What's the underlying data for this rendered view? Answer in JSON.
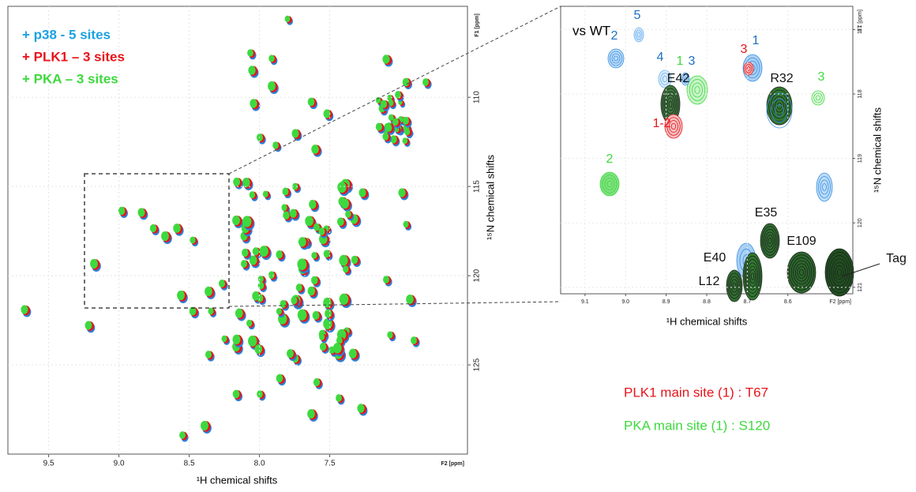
{
  "main_panel": {
    "legend": [
      {
        "text": "+ p38 - 5 sites",
        "color": "#1ba1e2"
      },
      {
        "text": "+ PLK1 – 3 sites",
        "color": "#e8141b"
      },
      {
        "text": "+ PKA – 3 sites",
        "color": "#3ed93e"
      }
    ],
    "xlim": [
      9.79,
      6.52
    ],
    "ylim": [
      104.9,
      130
    ],
    "xticks": [
      9.5,
      {
        "value": 9,
        "label": "9.0"
      },
      8.5,
      {
        "value": 8,
        "label": "8.0"
      },
      7.5
    ],
    "yticks": [
      110,
      115,
      120,
      125
    ],
    "x_unit": "F2 [ppm]",
    "y_unit": "F1 [ppm]",
    "x_label": "¹H chemical shifts",
    "y_label": "¹⁵N chemical shifts"
  },
  "inset_panel": {
    "title": "vs WT",
    "xlim": [
      9.16,
      8.44
    ],
    "ylim": [
      116.64,
      121.1
    ],
    "xticks": [
      9.1,
      {
        "value": 9,
        "label": "9.0"
      },
      8.9,
      8.8,
      8.7,
      8.6
    ],
    "yticks": [
      117,
      118,
      119,
      120,
      121
    ],
    "x_unit": "F2 [ppm]",
    "y_unit": "F1 [ppm]",
    "x_label": "¹H chemical shifts",
    "y_label": "¹⁵N chemical shifts",
    "annotations": [
      {
        "text": "5",
        "color": "#1f6fbf"
      },
      {
        "text": "2",
        "color": "#1f6fbf"
      },
      {
        "text": "4",
        "color": "#1f6fbf"
      },
      {
        "text": "1",
        "color": "#3ed93e"
      },
      {
        "text": "3",
        "color": "#1f6fbf"
      },
      {
        "text": "3",
        "color": "#e8141b"
      },
      {
        "text": "1",
        "color": "#1f6fbf"
      },
      {
        "text": "E42",
        "color": "#111111"
      },
      {
        "text": "R32",
        "color": "#111111"
      },
      {
        "text": "3",
        "color": "#3ed93e"
      },
      {
        "text": "1-2",
        "color": "#e8141b"
      },
      {
        "text": "2",
        "color": "#3ed93e"
      },
      {
        "text": "E35",
        "color": "#111111"
      },
      {
        "text": "E109",
        "color": "#111111"
      },
      {
        "text": "E40",
        "color": "#111111"
      },
      {
        "text": "L12",
        "color": "#111111"
      },
      {
        "text": "Tag",
        "color": "#111111"
      }
    ]
  },
  "notes": [
    {
      "text": "PLK1 main site (1) : T67",
      "color": "#e8141b"
    },
    {
      "text": "PKA main site (1) : S120",
      "color": "#3ed93e"
    }
  ]
}
